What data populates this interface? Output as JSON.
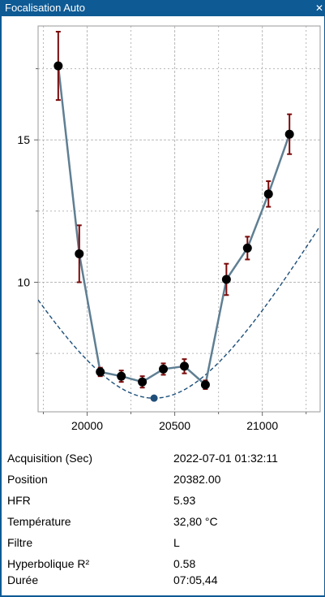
{
  "window": {
    "title": "Focalisation Auto",
    "close_glyph": "✕"
  },
  "colors": {
    "titlebar": "#0e5a94",
    "series_line": "#5f7f93",
    "point": "#000000",
    "error_bar": "#7a0a0a",
    "fit_curve": "#1c4f7a",
    "best_point": "#1f4e79",
    "grid": "#b8b8b8"
  },
  "chart_data": {
    "type": "scatter",
    "x_ticks": [
      20000,
      20500,
      21000
    ],
    "y_ticks": [
      10,
      15
    ],
    "xlim": [
      19720,
      21330
    ],
    "ylim": [
      5.45,
      19.0
    ],
    "grid": true,
    "series": [
      {
        "points": [
          {
            "x": 19835,
            "y": 17.6,
            "err": 1.2
          },
          {
            "x": 19955,
            "y": 11.0,
            "err": 1.0
          },
          {
            "x": 20075,
            "y": 6.85,
            "err": 0.15
          },
          {
            "x": 20195,
            "y": 6.7,
            "err": 0.2
          },
          {
            "x": 20315,
            "y": 6.5,
            "err": 0.2
          },
          {
            "x": 20435,
            "y": 6.95,
            "err": 0.2
          },
          {
            "x": 20555,
            "y": 7.05,
            "err": 0.25
          },
          {
            "x": 20675,
            "y": 6.4,
            "err": 0.15
          },
          {
            "x": 20795,
            "y": 10.1,
            "err": 0.55
          },
          {
            "x": 20915,
            "y": 11.2,
            "err": 0.4
          },
          {
            "x": 21035,
            "y": 13.1,
            "err": 0.45
          },
          {
            "x": 21155,
            "y": 15.2,
            "err": 0.7
          }
        ]
      }
    ],
    "fit": {
      "type": "hyperbolic",
      "vertex_x": 20382,
      "vertex_y": 5.93
    },
    "best_point": {
      "x": 20382,
      "y": 5.93
    }
  },
  "info": {
    "rows": [
      {
        "label": "Acquisition (Sec)",
        "value": "2022-07-01 01:32:11"
      },
      {
        "label": "Position",
        "value": "20382.00"
      },
      {
        "label": "HFR",
        "value": "5.93"
      },
      {
        "label": "Température",
        "value": "32,80 °C"
      },
      {
        "label": "Filtre",
        "value": "L"
      },
      {
        "label": "Hyperbolique R²",
        "value": "0.58"
      },
      {
        "label": "Durée",
        "value": "07:05,44"
      }
    ]
  }
}
